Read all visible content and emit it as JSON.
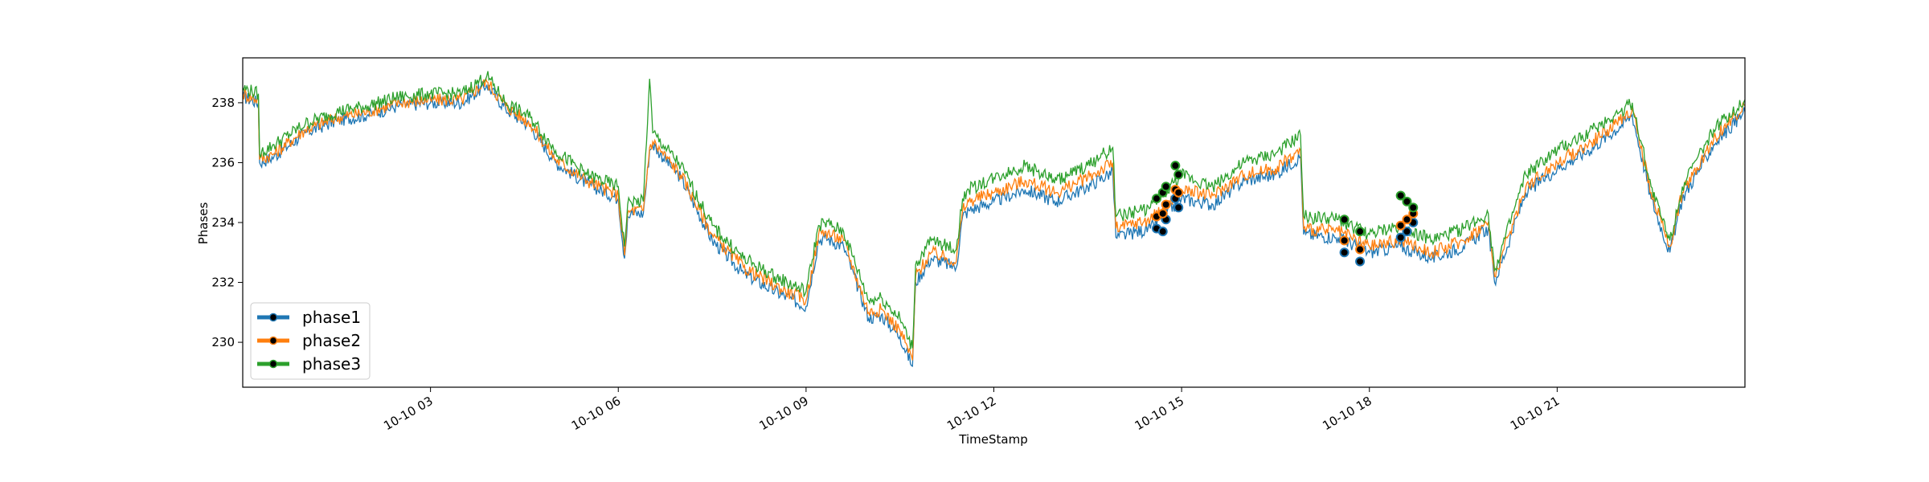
{
  "chart_data": {
    "type": "line",
    "title": "",
    "xlabel": "TimeStamp",
    "ylabel": "Phases",
    "xlim": [
      "2019-10-10 00:00",
      "2019-10-10 24:00"
    ],
    "ylim": [
      228.5,
      239.5
    ],
    "y_ticks": [
      230,
      232,
      234,
      236,
      238
    ],
    "x_ticks": [
      {
        "hour": 3,
        "label": "10-10 03"
      },
      {
        "hour": 6,
        "label": "10-10 06"
      },
      {
        "hour": 9,
        "label": "10-10 09"
      },
      {
        "hour": 12,
        "label": "10-10 12"
      },
      {
        "hour": 15,
        "label": "10-10 15"
      },
      {
        "hour": 18,
        "label": "10-10 18"
      },
      {
        "hour": 21,
        "label": "10-10 21"
      }
    ],
    "grid": false,
    "legend_position": "lower-left",
    "x_unit": "hour of day",
    "series": [
      {
        "name": "phase1",
        "color": "#1f77b4",
        "x": [
          0,
          0.25,
          0.27,
          0.5,
          1,
          1.5,
          2,
          2.5,
          3,
          3.5,
          3.9,
          4.2,
          4.6,
          5,
          5.5,
          6,
          6.1,
          6.15,
          6.2,
          6.4,
          6.5,
          6.55,
          7,
          7.5,
          8,
          8.5,
          9,
          9.2,
          9.3,
          9.6,
          10,
          10.2,
          10.5,
          10.7,
          10.75,
          11,
          11.4,
          11.5,
          11.6,
          12,
          12.5,
          13,
          13.5,
          13.9,
          13.95,
          14.5,
          15,
          15.5,
          16,
          16.5,
          16.9,
          16.95,
          17.5,
          18,
          18.5,
          19,
          19.5,
          19.9,
          20,
          20.5,
          21,
          21.5,
          22,
          22.2,
          22.5,
          22.8,
          23,
          23.5,
          24
        ],
        "y": [
          238.2,
          238.0,
          236.0,
          236.2,
          237.0,
          237.4,
          237.6,
          237.9,
          238.0,
          238.0,
          238.6,
          237.8,
          237.2,
          236.0,
          235.3,
          234.8,
          232.8,
          234.2,
          234.3,
          234.3,
          236.4,
          236.6,
          235.5,
          233.4,
          232.3,
          231.7,
          231.2,
          233.4,
          233.5,
          233.2,
          230.8,
          230.9,
          230.2,
          229.2,
          232.0,
          232.8,
          232.5,
          234.2,
          234.4,
          234.7,
          235.1,
          234.7,
          235.2,
          235.7,
          233.5,
          233.8,
          234.8,
          234.6,
          235.4,
          235.6,
          236.2,
          233.6,
          233.5,
          233.0,
          233.2,
          232.8,
          233.2,
          233.8,
          232.0,
          235.0,
          235.8,
          236.4,
          237.2,
          237.6,
          234.8,
          233.0,
          234.8,
          236.6,
          237.7
        ]
      },
      {
        "name": "phase2",
        "color": "#ff7f0e",
        "x": [
          0,
          0.25,
          0.27,
          0.5,
          1,
          1.5,
          2,
          2.5,
          3,
          3.5,
          3.9,
          4.2,
          4.6,
          5,
          5.5,
          6,
          6.1,
          6.15,
          6.2,
          6.4,
          6.5,
          6.55,
          7,
          7.5,
          8,
          8.5,
          9,
          9.2,
          9.3,
          9.6,
          10,
          10.2,
          10.5,
          10.7,
          10.75,
          11,
          11.4,
          11.5,
          11.6,
          12,
          12.5,
          13,
          13.5,
          13.9,
          13.95,
          14.5,
          15,
          15.5,
          16,
          16.5,
          16.9,
          16.95,
          17.5,
          18,
          18.5,
          19,
          19.5,
          19.9,
          20,
          20.5,
          21,
          21.5,
          22,
          22.2,
          22.5,
          22.8,
          23,
          23.5,
          24
        ],
        "y": [
          238.3,
          238.1,
          236.1,
          236.3,
          237.1,
          237.5,
          237.7,
          238.0,
          238.1,
          238.1,
          238.7,
          237.9,
          237.3,
          236.1,
          235.4,
          234.9,
          232.9,
          234.3,
          234.4,
          234.4,
          236.5,
          236.7,
          235.6,
          233.6,
          232.5,
          231.9,
          231.4,
          233.6,
          233.7,
          233.4,
          231.0,
          231.1,
          230.4,
          229.4,
          232.2,
          233.0,
          232.7,
          234.4,
          234.7,
          235.0,
          235.4,
          235.0,
          235.5,
          236.0,
          233.8,
          234.1,
          235.1,
          234.9,
          235.6,
          235.8,
          236.4,
          233.8,
          233.7,
          233.2,
          233.4,
          233.0,
          233.4,
          234.0,
          232.2,
          235.2,
          236.0,
          236.6,
          237.4,
          237.8,
          235.0,
          233.2,
          235.0,
          236.8,
          237.9
        ]
      },
      {
        "name": "phase3",
        "color": "#2ca02c",
        "x": [
          0,
          0.25,
          0.27,
          0.5,
          1,
          1.5,
          2,
          2.5,
          3,
          3.5,
          3.9,
          4.2,
          4.6,
          5,
          5.5,
          6,
          6.1,
          6.15,
          6.2,
          6.4,
          6.5,
          6.55,
          7,
          7.5,
          8,
          8.5,
          9,
          9.2,
          9.3,
          9.6,
          10,
          10.2,
          10.5,
          10.7,
          10.75,
          11,
          11.4,
          11.5,
          11.6,
          12,
          12.5,
          13,
          13.5,
          13.9,
          13.95,
          14.5,
          15,
          15.5,
          16,
          16.5,
          16.9,
          16.95,
          17.5,
          18,
          18.5,
          19,
          19.5,
          19.9,
          20,
          20.5,
          21,
          21.5,
          22,
          22.2,
          22.5,
          22.8,
          23,
          23.5,
          24
        ],
        "y": [
          238.5,
          238.3,
          236.3,
          236.6,
          237.3,
          237.7,
          237.9,
          238.2,
          238.3,
          238.3,
          238.9,
          238.0,
          237.5,
          236.4,
          235.6,
          235.2,
          233.2,
          234.6,
          234.7,
          234.7,
          238.8,
          237.0,
          235.9,
          233.9,
          232.8,
          232.2,
          231.7,
          233.9,
          234.0,
          233.7,
          231.4,
          231.5,
          230.8,
          229.8,
          232.6,
          233.4,
          233.1,
          234.8,
          235.1,
          235.5,
          235.9,
          235.4,
          235.9,
          236.5,
          234.2,
          234.5,
          235.6,
          235.2,
          236.0,
          236.3,
          236.9,
          234.2,
          234.1,
          233.6,
          233.9,
          233.4,
          233.8,
          234.3,
          232.4,
          235.6,
          236.4,
          237.0,
          237.7,
          238.0,
          235.2,
          233.4,
          235.2,
          237.1,
          238.1
        ]
      }
    ],
    "markers": [
      {
        "series": "phase1",
        "x": [
          14.6,
          14.7,
          14.75,
          14.9,
          14.95,
          17.6,
          17.85,
          18.5,
          18.6,
          18.7
        ],
        "y": [
          233.8,
          233.7,
          234.1,
          234.8,
          234.5,
          233.0,
          232.7,
          233.5,
          233.7,
          234.0
        ]
      },
      {
        "series": "phase2",
        "x": [
          14.6,
          14.7,
          14.75,
          14.9,
          14.95,
          17.6,
          17.85,
          18.5,
          18.6,
          18.7
        ],
        "y": [
          234.2,
          234.3,
          234.6,
          235.1,
          235.0,
          233.4,
          233.1,
          233.9,
          234.1,
          234.3
        ]
      },
      {
        "series": "phase3",
        "x": [
          14.6,
          14.7,
          14.75,
          14.9,
          14.95,
          17.6,
          17.85,
          18.5,
          18.6,
          18.7
        ],
        "y": [
          234.8,
          235.0,
          235.2,
          235.9,
          235.6,
          234.1,
          233.7,
          234.9,
          234.7,
          234.5
        ]
      }
    ]
  }
}
